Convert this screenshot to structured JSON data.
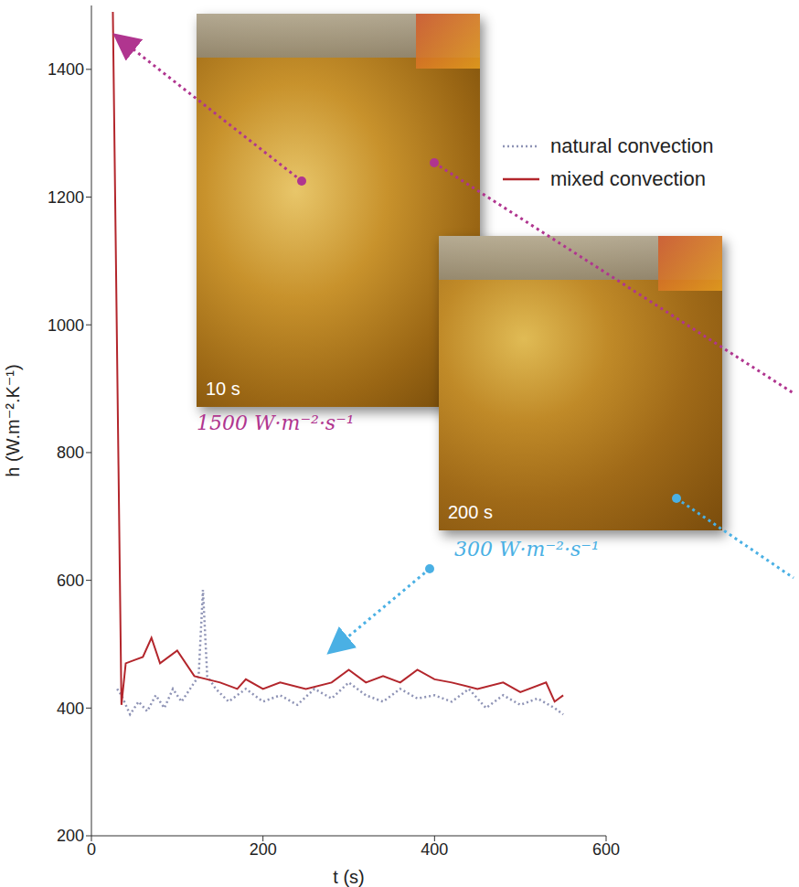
{
  "chart_data": {
    "type": "line",
    "x_label": "t (s)",
    "y_label": "h (W.m⁻².K⁻¹)",
    "xlim": [
      0,
      600
    ],
    "xticks": [
      0,
      200,
      400,
      600
    ],
    "ylim": [
      200,
      1500
    ],
    "yticks": [
      200,
      400,
      600,
      800,
      1000,
      1200,
      1400
    ],
    "legend": "upper right",
    "series": [
      {
        "name": "natural convection",
        "color": "#8e93b5",
        "line_style": "dotted",
        "x": [
          30,
          35,
          45,
          55,
          65,
          75,
          85,
          95,
          105,
          115,
          125,
          130,
          135,
          145,
          160,
          180,
          200,
          220,
          240,
          260,
          280,
          300,
          320,
          340,
          360,
          380,
          400,
          420,
          440,
          460,
          480,
          500,
          520,
          540,
          550
        ],
        "values": [
          430,
          420,
          390,
          410,
          395,
          420,
          400,
          430,
          410,
          430,
          450,
          585,
          450,
          430,
          410,
          430,
          410,
          420,
          405,
          430,
          415,
          440,
          420,
          410,
          430,
          415,
          420,
          410,
          430,
          400,
          420,
          405,
          415,
          400,
          390
        ]
      },
      {
        "name": "mixed convection",
        "color": "#b3262c",
        "line_style": "solid",
        "x": [
          25,
          35,
          40,
          50,
          60,
          70,
          80,
          100,
          120,
          150,
          170,
          180,
          200,
          220,
          250,
          280,
          300,
          320,
          340,
          360,
          380,
          400,
          420,
          450,
          480,
          500,
          530,
          540,
          550
        ],
        "values": [
          1490,
          405,
          470,
          475,
          480,
          510,
          470,
          490,
          450,
          440,
          430,
          445,
          430,
          440,
          430,
          440,
          460,
          440,
          450,
          440,
          460,
          445,
          440,
          430,
          440,
          425,
          440,
          410,
          420
        ]
      }
    ],
    "annotations": [
      {
        "text": "1500 W·m⁻²·s⁻¹",
        "color": "#b0358f"
      },
      {
        "text": "300 W·m⁻²·s⁻¹",
        "color": "#4ab0e4"
      }
    ],
    "insets": [
      {
        "label": "10 s"
      },
      {
        "label": "200 s"
      }
    ]
  }
}
